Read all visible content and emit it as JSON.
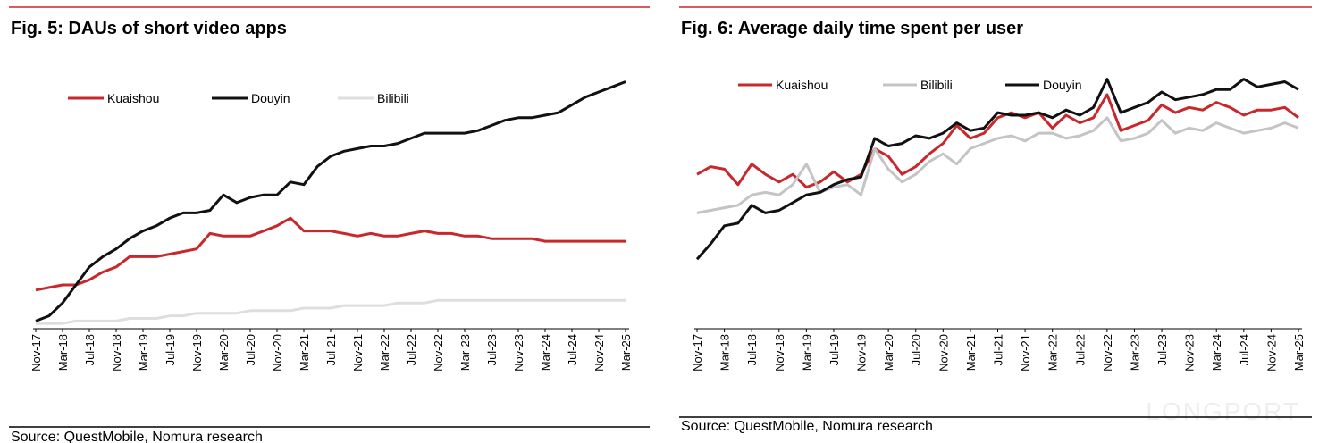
{
  "chart_data": [
    {
      "type": "line",
      "title": "Fig. 5: DAUs of short video apps",
      "source": "Source: QuestMobile, Nomura research",
      "categories": [
        "Nov-17",
        null,
        "Mar-18",
        null,
        "Jul-18",
        null,
        "Nov-18",
        null,
        "Mar-19",
        null,
        "Jul-19",
        null,
        "Nov-19",
        null,
        "Mar-20",
        null,
        "Jul-20",
        null,
        "Nov-20",
        null,
        "Mar-21",
        null,
        "Jul-21",
        null,
        "Nov-21",
        null,
        "Mar-22",
        null,
        "Jul-22",
        null,
        "Nov-22",
        null,
        "Mar-23",
        null,
        "Jul-23",
        null,
        "Nov-23",
        null,
        "Mar-24",
        null,
        "Jul-24",
        null,
        "Nov-24",
        null,
        "Mar-25"
      ],
      "ylim": [
        0,
        100
      ],
      "series": [
        {
          "name": "Kuaishou",
          "color": "#c8282b",
          "values": [
            15,
            16,
            17,
            17,
            19,
            22,
            24,
            28,
            28,
            28,
            29,
            30,
            31,
            37,
            36,
            36,
            36,
            38,
            40,
            43,
            38,
            38,
            38,
            37,
            36,
            37,
            36,
            36,
            37,
            38,
            37,
            37,
            36,
            36,
            35,
            35,
            35,
            35,
            34,
            34,
            34,
            34,
            34,
            34,
            34
          ]
        },
        {
          "name": "Douyin",
          "color": "#111111",
          "values": [
            3,
            5,
            10,
            17,
            24,
            28,
            31,
            35,
            38,
            40,
            43,
            45,
            45,
            46,
            52,
            49,
            51,
            52,
            52,
            57,
            56,
            63,
            67,
            69,
            70,
            71,
            71,
            72,
            74,
            76,
            76,
            76,
            76,
            77,
            79,
            81,
            82,
            82,
            83,
            84,
            87,
            90,
            92,
            94,
            96
          ]
        },
        {
          "name": "Bilibili",
          "color": "#dedede",
          "values": [
            2,
            2,
            2,
            3,
            3,
            3,
            3,
            4,
            4,
            4,
            5,
            5,
            6,
            6,
            6,
            6,
            7,
            7,
            7,
            7,
            8,
            8,
            8,
            9,
            9,
            9,
            9,
            10,
            10,
            10,
            11,
            11,
            11,
            11,
            11,
            11,
            11,
            11,
            11,
            11,
            11,
            11,
            11,
            11,
            11
          ]
        }
      ]
    },
    {
      "type": "line",
      "title": "Fig. 6: Average daily time spent per user",
      "source": "Source: QuestMobile, Nomura research",
      "categories": [
        "Nov-17",
        null,
        "Mar-18",
        null,
        "Jul-18",
        null,
        "Nov-18",
        null,
        "Mar-19",
        null,
        "Jul-19",
        null,
        "Nov-19",
        null,
        "Mar-20",
        null,
        "Jul-20",
        null,
        "Nov-20",
        null,
        "Mar-21",
        null,
        "Jul-21",
        null,
        "Nov-21",
        null,
        "Mar-22",
        null,
        "Jul-22",
        null,
        "Nov-22",
        null,
        "Mar-23",
        null,
        "Jul-23",
        null,
        "Nov-23",
        null,
        "Mar-24",
        null,
        "Jul-24",
        null,
        "Nov-24",
        null,
        "Mar-25"
      ],
      "ylim": [
        0,
        100
      ],
      "series": [
        {
          "name": "Kuaishou",
          "color": "#c8282b",
          "values": [
            60,
            63,
            62,
            56,
            64,
            60,
            57,
            60,
            55,
            57,
            61,
            57,
            60,
            70,
            67,
            60,
            63,
            68,
            72,
            79,
            74,
            76,
            82,
            84,
            82,
            84,
            78,
            83,
            80,
            82,
            91,
            77,
            79,
            81,
            87,
            84,
            86,
            85,
            88,
            86,
            83,
            85,
            85,
            86,
            82
          ]
        },
        {
          "name": "Bilibili",
          "color": "#c4c4c4",
          "values": [
            45,
            46,
            47,
            48,
            52,
            53,
            52,
            56,
            64,
            53,
            55,
            56,
            52,
            70,
            62,
            57,
            60,
            65,
            68,
            64,
            70,
            72,
            74,
            75,
            73,
            76,
            76,
            74,
            75,
            77,
            82,
            73,
            74,
            76,
            81,
            76,
            78,
            77,
            80,
            78,
            76,
            77,
            78,
            80,
            78
          ]
        },
        {
          "name": "Douyin",
          "color": "#111111",
          "values": [
            27,
            33,
            40,
            41,
            48,
            45,
            46,
            49,
            52,
            53,
            56,
            58,
            59,
            74,
            71,
            72,
            75,
            74,
            76,
            80,
            77,
            78,
            84,
            83,
            83,
            84,
            82,
            85,
            83,
            86,
            97,
            84,
            86,
            88,
            92,
            89,
            90,
            91,
            93,
            93,
            97,
            94,
            95,
            96,
            93
          ]
        }
      ]
    }
  ],
  "watermark": "LONGPORT"
}
